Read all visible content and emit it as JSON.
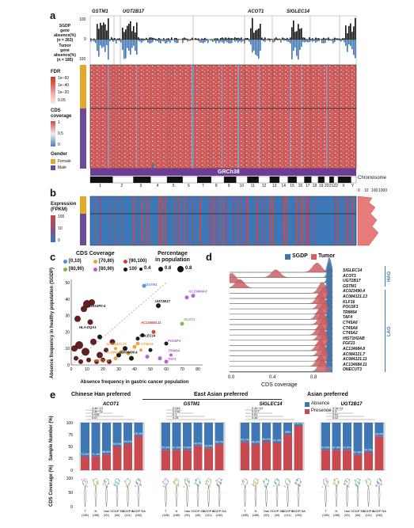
{
  "panel_a": {
    "label": "a",
    "genes": [
      "GSTM1",
      "UGT2B17",
      "ACOT1",
      "SIGLEC14"
    ],
    "sgdp_label": "SGDP",
    "sgdp_label2": "gene absence(%)",
    "sgdp_n": "(n = 263)",
    "tumor_label": "Tumor",
    "tumor_label2": "gene absence(%)",
    "tumor_n": "(n = 185)",
    "axis_100_top": "100",
    "axis_0": "0",
    "axis_100_bottom": "100",
    "fdr_title": "FDR",
    "fdr_ticks": [
      "1e−60",
      "1e−40",
      "1e−20",
      "0.05"
    ],
    "cds_title": "CDS",
    "cds_title2": "coverage",
    "cds_ticks": [
      "1",
      "0.5",
      "0"
    ],
    "gender_title": "Gender",
    "gender_items": [
      "Female",
      "Male"
    ],
    "genome": "GRCh38",
    "chromosome_label": "Chromosome",
    "chromosomes": [
      "1",
      "2",
      "3",
      "4",
      "5",
      "6",
      "7",
      "8",
      "9",
      "10",
      "11",
      "12",
      "13",
      "14",
      "15",
      "16",
      "17",
      "18",
      "19",
      "20",
      "21",
      "22",
      "X",
      "Y"
    ]
  },
  "panel_b": {
    "label": "b",
    "title": "Expression",
    "title2": "(FPKM)",
    "ticks": [
      "100",
      "10",
      "0"
    ],
    "side_axis": [
      "0",
      "10",
      "100",
      "1000"
    ]
  },
  "panel_c": {
    "label": "c",
    "legend_cds_title": "CDS Coverage",
    "legend_cds_items": [
      "[0,10)",
      "[70,80)",
      "[90,100)",
      "[80,90)",
      "[80,90)",
      "100"
    ],
    "legend_pct_title": "Percentage",
    "legend_pct_title2": "in population",
    "legend_pct_items": [
      "0.4",
      "0.6",
      "0.8"
    ],
    "ylabel": "Absence frequency in healthy population (SGDP)",
    "xlabel": "Absence frequency in gastric cancer population",
    "xticks": [
      "0",
      "10",
      "20",
      "30",
      "40",
      "50",
      "60",
      "70",
      "80"
    ],
    "yticks": [
      "0",
      "10",
      "20",
      "30",
      "40",
      "50"
    ],
    "point_labels": [
      "GSTM1",
      "AC134684.8",
      "UGT2B17",
      "KIRS3P0-4",
      "AC134684.11",
      "ACOT1",
      "HLA-DQA1",
      "SIGLEC14",
      "AC084121.13",
      "CT45A6",
      "POU5F3",
      "AC084121.7",
      "AC008490.4",
      "TRIM64",
      "TAF4",
      "ONECUT3"
    ],
    "colors": {
      "c0": "#4a90d9",
      "c70": "#e6a23c",
      "c80a": "#7ab648",
      "c90": "#d63a3a",
      "c80b": "#b05fd1",
      "c100": "#111111"
    }
  },
  "panel_d": {
    "label": "d",
    "legend": [
      "SGDP",
      "Tumor"
    ],
    "genes": [
      "SIGLEC14",
      "ACOT1",
      "UGT2B17",
      "GSTM1",
      "AC023490.4",
      "AC084121.13",
      "KLF16",
      "POU3F3",
      "TRIM64",
      "TAF4",
      "CT45A6",
      "CT45A8",
      "CT45A2",
      "HIST1H2AB",
      "FGF21",
      "AC134684.8",
      "AC084121.7",
      "AC084121.11",
      "AC134684.11",
      "ONECUT3"
    ],
    "group_top": "HAG",
    "group_bottom": "LAG",
    "xticks": [
      "0.0",
      "0.4",
      "0.8"
    ],
    "xlabel": "CDS coverage",
    "colors": {
      "sgdp": "#3f77b5",
      "tumor": "#d06064"
    }
  },
  "panel_e": {
    "label": "e",
    "group_titles": [
      "Chinese Han preferred",
      "East Asian preferred",
      "Asian preferred"
    ],
    "genes": [
      "ACOT1",
      "GSTM1",
      "SIGLEC14",
      "UGT2B17"
    ],
    "legend": [
      "Absence",
      "Presence"
    ],
    "ylabel_top": "Sample Number (%)",
    "ylabel_bottom": "CDS Coverage (%)",
    "yticks_top": [
      "100",
      "75",
      "50",
      "25",
      "0"
    ],
    "yticks_bottom": [
      "100",
      "50",
      "0"
    ],
    "categories": [
      "T",
      "N",
      "Han",
      "SGDP EA",
      "SGDP A",
      "SGDP NA"
    ],
    "category_counts": [
      "(185)",
      "(185)",
      "(90)",
      "(40)",
      "(111)",
      "(152)"
    ],
    "pvals": [
      [
        "4.4e−13",
        "3.3e−02",
        "0.046",
        "0.67"
      ],
      [
        "0.049",
        "0.016",
        "0.1",
        "0.25"
      ],
      [
        "2.4e−10",
        "0.017",
        "0.61",
        "0.44"
      ],
      [
        "3.1e−11",
        "0.3",
        "0.61",
        "0.02"
      ]
    ],
    "bar_pcts": [
      [
        "71.8%",
        "71.4%",
        "66.8%",
        "50.0%",
        "45.0%",
        "28.3%"
      ],
      [
        "57.8%",
        "57.8%",
        "57.8%",
        "49.0%",
        "53.8%",
        "45.7%"
      ],
      [
        "41.1%",
        "45.9%",
        "40.1%",
        "42.5%",
        "25%",
        "6.61%"
      ],
      [
        "57.8%",
        "57.8%",
        "57.8%",
        "67.8%",
        "62.5%",
        "28.9%"
      ]
    ],
    "absence_values": [
      [
        71.8,
        71.4,
        66.8,
        50.0,
        45.0,
        28.3
      ],
      [
        57.8,
        57.8,
        57.8,
        49.0,
        53.8,
        45.7
      ],
      [
        41.1,
        45.9,
        40.1,
        42.5,
        25,
        6.61
      ],
      [
        57.8,
        57.8,
        57.8,
        67.8,
        62.5,
        28.9
      ]
    ],
    "colors": {
      "absence": "#3f77b5",
      "presence": "#c84a50"
    }
  }
}
